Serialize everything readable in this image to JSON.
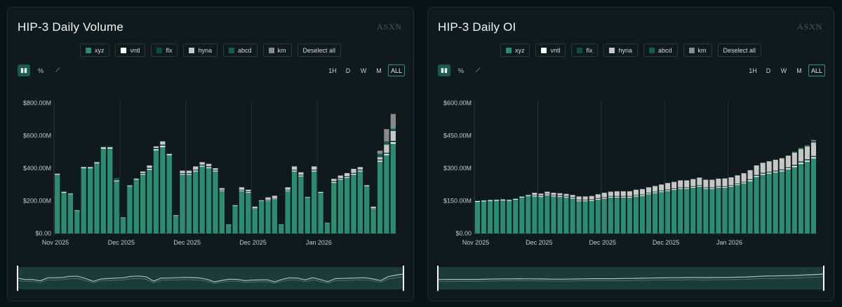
{
  "brand_label": "ASXN",
  "legend_colors": {
    "xyz": "#2e8b6e",
    "vntl": "#ffffff",
    "flx": "#0e4d3c",
    "hyna": "#c7c7c7",
    "abcd": "#15604b",
    "km": "#8a8a8a"
  },
  "legend": [
    {
      "key": "xyz",
      "label": "xyz"
    },
    {
      "key": "vntl",
      "label": "vntl"
    },
    {
      "key": "flx",
      "label": "flx"
    },
    {
      "key": "hyna",
      "label": "hyna"
    },
    {
      "key": "abcd",
      "label": "abcd"
    },
    {
      "key": "km",
      "label": "km"
    }
  ],
  "deselect_label": "Deselect all",
  "chart_tools": [
    {
      "name": "bar-chart-icon",
      "glyph": "▮▮",
      "active": true
    },
    {
      "name": "percent-icon",
      "glyph": "%",
      "active": false
    },
    {
      "name": "line-chart-icon",
      "glyph": "⟋",
      "active": false
    }
  ],
  "timeframes": [
    {
      "label": "1H",
      "active": false
    },
    {
      "label": "D",
      "active": false
    },
    {
      "label": "W",
      "active": false
    },
    {
      "label": "M",
      "active": false
    },
    {
      "label": "ALL",
      "active": true
    }
  ],
  "chart_data": [
    {
      "type": "bar",
      "stacked": true,
      "title": "HIP-3 Daily Volume",
      "xlabel": "",
      "ylabel": "",
      "ylim": [
        0,
        800
      ],
      "yticks": [
        0,
        200,
        400,
        600,
        800
      ],
      "yticklabels": [
        "$0.00",
        "$200.00M",
        "$400.00M",
        "$600.00M",
        "$800.00M"
      ],
      "xticklabels": [
        {
          "index": 0,
          "label": "Nov 2025"
        },
        {
          "index": 10,
          "label": "Dec 2025"
        },
        {
          "index": 20,
          "label": "Dec 2025"
        },
        {
          "index": 30,
          "label": "Dec 2025"
        },
        {
          "index": 40,
          "label": "Jan 2026"
        }
      ],
      "grid": "vertical",
      "series": [
        {
          "name": "xyz",
          "values": [
            360,
            250,
            240,
            140,
            400,
            400,
            430,
            520,
            520,
            320,
            95,
            290,
            330,
            360,
            390,
            510,
            530,
            480,
            110,
            360,
            360,
            380,
            410,
            400,
            380,
            260,
            55,
            170,
            260,
            250,
            150,
            200,
            200,
            210,
            55,
            260,
            380,
            350,
            220,
            380,
            250,
            65,
            310,
            330,
            340,
            360,
            380,
            290,
            150,
            440,
            480,
            550
          ]
        },
        {
          "name": "vntl",
          "values": [
            5,
            5,
            4,
            2,
            6,
            6,
            6,
            8,
            8,
            5,
            2,
            4,
            5,
            5,
            6,
            7,
            8,
            7,
            2,
            5,
            5,
            6,
            6,
            6,
            5,
            4,
            1,
            3,
            4,
            4,
            2,
            3,
            3,
            3,
            1,
            4,
            6,
            5,
            3,
            6,
            4,
            1,
            5,
            5,
            5,
            6,
            6,
            5,
            2,
            7,
            8,
            10
          ]
        },
        {
          "name": "flx",
          "values": [
            5,
            4,
            4,
            2,
            5,
            5,
            5,
            7,
            7,
            5,
            2,
            4,
            5,
            5,
            6,
            7,
            7,
            6,
            2,
            5,
            5,
            5,
            6,
            6,
            5,
            4,
            1,
            3,
            4,
            4,
            2,
            3,
            3,
            3,
            1,
            4,
            5,
            5,
            3,
            5,
            4,
            1,
            5,
            5,
            5,
            5,
            6,
            4,
            2,
            6,
            7,
            8
          ]
        },
        {
          "name": "hyna",
          "values": [
            0,
            0,
            0,
            0,
            0,
            0,
            0,
            0,
            0,
            0,
            0,
            0,
            0,
            10,
            15,
            10,
            20,
            0,
            0,
            15,
            15,
            20,
            15,
            15,
            10,
            10,
            0,
            0,
            15,
            10,
            10,
            0,
            15,
            15,
            0,
            15,
            20,
            15,
            0,
            20,
            0,
            0,
            15,
            15,
            20,
            25,
            15,
            0,
            10,
            15,
            50,
            60
          ]
        },
        {
          "name": "abcd",
          "values": [
            0,
            0,
            0,
            0,
            0,
            0,
            0,
            0,
            0,
            10,
            0,
            0,
            0,
            0,
            0,
            0,
            0,
            0,
            0,
            0,
            0,
            0,
            0,
            0,
            0,
            0,
            0,
            0,
            0,
            0,
            0,
            0,
            0,
            0,
            0,
            0,
            0,
            0,
            0,
            0,
            0,
            0,
            0,
            0,
            0,
            0,
            0,
            0,
            0,
            20,
            20,
            15
          ]
        },
        {
          "name": "km",
          "values": [
            0,
            0,
            0,
            0,
            0,
            0,
            0,
            0,
            0,
            0,
            0,
            0,
            0,
            0,
            0,
            0,
            0,
            0,
            0,
            0,
            0,
            0,
            0,
            0,
            0,
            0,
            0,
            0,
            0,
            0,
            0,
            0,
            0,
            0,
            0,
            0,
            0,
            0,
            0,
            0,
            0,
            0,
            0,
            0,
            0,
            0,
            0,
            0,
            0,
            20,
            75,
            90
          ]
        }
      ]
    },
    {
      "type": "bar",
      "stacked": true,
      "title": "HIP-3 Daily OI",
      "xlabel": "",
      "ylabel": "",
      "ylim": [
        0,
        600
      ],
      "yticks": [
        0,
        150,
        300,
        450,
        600
      ],
      "yticklabels": [
        "$0.00",
        "$150.00M",
        "$300.00M",
        "$450.00M",
        "$600.00M"
      ],
      "xticklabels": [
        {
          "index": 0,
          "label": "Nov 2025"
        },
        {
          "index": 10,
          "label": "Dec 2025"
        },
        {
          "index": 20,
          "label": "Dec 2025"
        },
        {
          "index": 30,
          "label": "Dec 2025"
        },
        {
          "index": 40,
          "label": "Jan 2026"
        }
      ],
      "grid": "vertical",
      "series": [
        {
          "name": "xyz",
          "values": [
            145,
            147,
            149,
            150,
            152,
            150,
            155,
            165,
            172,
            170,
            168,
            175,
            170,
            168,
            165,
            160,
            148,
            148,
            150,
            155,
            160,
            165,
            165,
            165,
            165,
            170,
            172,
            180,
            185,
            190,
            195,
            200,
            205,
            205,
            210,
            215,
            205,
            205,
            210,
            210,
            215,
            222,
            230,
            240,
            260,
            270,
            275,
            280,
            285,
            295,
            305,
            320,
            330,
            345
          ]
        },
        {
          "name": "vntl",
          "values": [
            4,
            4,
            4,
            4,
            4,
            4,
            4,
            4,
            4,
            4,
            4,
            4,
            4,
            4,
            4,
            4,
            4,
            4,
            4,
            4,
            4,
            4,
            4,
            4,
            4,
            4,
            4,
            4,
            4,
            4,
            4,
            4,
            4,
            4,
            4,
            4,
            4,
            4,
            4,
            4,
            4,
            4,
            4,
            5,
            5,
            5,
            5,
            5,
            5,
            5,
            6,
            6,
            6,
            6
          ]
        },
        {
          "name": "flx",
          "values": [
            3,
            3,
            3,
            3,
            3,
            3,
            3,
            3,
            3,
            3,
            3,
            3,
            3,
            3,
            3,
            3,
            3,
            3,
            3,
            3,
            3,
            3,
            3,
            3,
            3,
            3,
            3,
            3,
            3,
            3,
            3,
            3,
            3,
            3,
            3,
            3,
            3,
            3,
            3,
            3,
            3,
            3,
            3,
            4,
            4,
            4,
            4,
            4,
            4,
            4,
            5,
            5,
            5,
            5
          ]
        },
        {
          "name": "hyna",
          "values": [
            0,
            0,
            0,
            0,
            0,
            0,
            0,
            0,
            0,
            10,
            8,
            10,
            10,
            10,
            10,
            10,
            15,
            15,
            15,
            18,
            20,
            20,
            22,
            22,
            22,
            24,
            25,
            25,
            26,
            28,
            30,
            30,
            32,
            32,
            33,
            35,
            35,
            35,
            35,
            36,
            36,
            38,
            40,
            42,
            44,
            46,
            48,
            50,
            52,
            54,
            56,
            58,
            60,
            62
          ]
        },
        {
          "name": "abcd",
          "values": [
            0,
            0,
            0,
            0,
            0,
            0,
            0,
            0,
            0,
            0,
            0,
            0,
            0,
            0,
            0,
            0,
            0,
            0,
            0,
            0,
            0,
            0,
            0,
            0,
            0,
            0,
            0,
            0,
            0,
            0,
            0,
            0,
            0,
            0,
            0,
            0,
            0,
            0,
            0,
            0,
            0,
            0,
            0,
            0,
            0,
            0,
            0,
            0,
            0,
            0,
            5,
            6,
            6,
            7
          ]
        },
        {
          "name": "km",
          "values": [
            0,
            0,
            0,
            0,
            0,
            0,
            0,
            0,
            0,
            0,
            0,
            0,
            0,
            0,
            0,
            0,
            0,
            0,
            0,
            0,
            0,
            0,
            0,
            0,
            0,
            0,
            0,
            0,
            0,
            0,
            0,
            0,
            0,
            0,
            0,
            0,
            0,
            0,
            0,
            0,
            0,
            0,
            0,
            0,
            0,
            0,
            0,
            0,
            0,
            0,
            0,
            0,
            0,
            5
          ]
        }
      ]
    }
  ]
}
